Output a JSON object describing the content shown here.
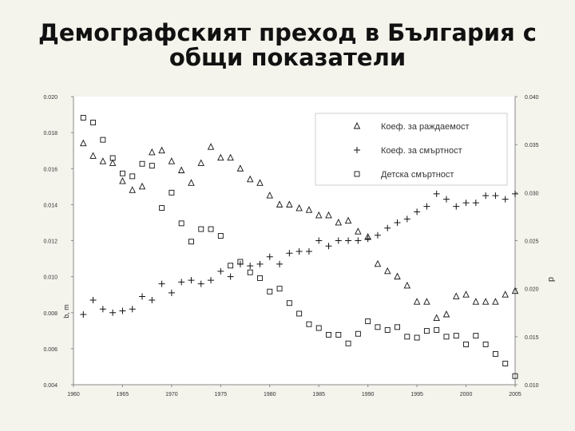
{
  "slide": {
    "title_line1": "Демографският преход в България с",
    "title_line2": "общи показатели"
  },
  "chart_data": {
    "type": "scatter",
    "title": "",
    "xlim": [
      1960,
      2005
    ],
    "x_ticks": [
      "1960",
      "1965",
      "1970",
      "1975",
      "1980",
      "1985",
      "1990",
      "1995",
      "2000",
      "2005"
    ],
    "ylim_left": [
      0.004,
      0.02
    ],
    "y_ticks_left": [
      "0.004",
      "0.006",
      "0.008",
      "0.010",
      "0.012",
      "0.014",
      "0.016",
      "0.018",
      "0.020"
    ],
    "ylim_right": [
      0.01,
      0.04
    ],
    "y_ticks_right": [
      "0.010",
      "0.015",
      "0.020",
      "0.025",
      "0.030",
      "0.035",
      "0.040"
    ],
    "ylabel_left": "b, m",
    "ylabel_right": "d",
    "legend_position": "top-right",
    "grid": false,
    "series": [
      {
        "name": "Коеф. за раждаемост",
        "marker": "triangle",
        "axis": "left",
        "x": [
          1961,
          1962,
          1963,
          1964,
          1965,
          1966,
          1967,
          1968,
          1969,
          1970,
          1971,
          1972,
          1973,
          1974,
          1975,
          1976,
          1977,
          1978,
          1979,
          1980,
          1981,
          1982,
          1983,
          1984,
          1985,
          1986,
          1987,
          1988,
          1989,
          1990,
          1991,
          1992,
          1993,
          1994,
          1995,
          1996,
          1997,
          1998,
          1999,
          2000,
          2001,
          2002,
          2003,
          2004,
          2005
        ],
        "y": [
          0.0174,
          0.0167,
          0.0164,
          0.0163,
          0.0153,
          0.0148,
          0.015,
          0.0169,
          0.017,
          0.0164,
          0.0159,
          0.0152,
          0.0163,
          0.0172,
          0.0166,
          0.0166,
          0.016,
          0.0154,
          0.0152,
          0.0145,
          0.014,
          0.014,
          0.0138,
          0.0137,
          0.0134,
          0.0134,
          0.013,
          0.0131,
          0.0125,
          0.0122,
          0.0107,
          0.0103,
          0.01,
          0.0095,
          0.0086,
          0.0086,
          0.0077,
          0.0079,
          0.0089,
          0.009,
          0.0086,
          0.0086,
          0.0086,
          0.009,
          0.0092
        ]
      },
      {
        "name": "Коеф. за смъртност",
        "marker": "plus",
        "axis": "left",
        "x": [
          1961,
          1962,
          1963,
          1964,
          1965,
          1966,
          1967,
          1968,
          1969,
          1970,
          1971,
          1972,
          1973,
          1974,
          1975,
          1976,
          1977,
          1978,
          1979,
          1980,
          1981,
          1982,
          1983,
          1984,
          1985,
          1986,
          1987,
          1988,
          1989,
          1990,
          1991,
          1992,
          1993,
          1994,
          1995,
          1996,
          1997,
          1998,
          1999,
          2000,
          2001,
          2002,
          2003,
          2004,
          2005
        ],
        "y": [
          0.0079,
          0.0087,
          0.0082,
          0.008,
          0.0081,
          0.0082,
          0.0089,
          0.0087,
          0.0096,
          0.0091,
          0.0097,
          0.0098,
          0.0096,
          0.0098,
          0.0103,
          0.01,
          0.0107,
          0.0106,
          0.0107,
          0.0111,
          0.0107,
          0.0113,
          0.0114,
          0.0114,
          0.012,
          0.0117,
          0.012,
          0.012,
          0.012,
          0.0121,
          0.0123,
          0.0127,
          0.013,
          0.0132,
          0.0136,
          0.0139,
          0.0146,
          0.0143,
          0.0139,
          0.0141,
          0.0141,
          0.0145,
          0.0145,
          0.0143,
          0.0146
        ]
      },
      {
        "name": "Детска смъртност",
        "marker": "square",
        "axis": "right",
        "x": [
          1961,
          1962,
          1963,
          1964,
          1965,
          1966,
          1967,
          1968,
          1969,
          1970,
          1971,
          1972,
          1973,
          1974,
          1975,
          1976,
          1977,
          1978,
          1979,
          1980,
          1981,
          1982,
          1983,
          1984,
          1985,
          1986,
          1987,
          1988,
          1989,
          1990,
          1991,
          1992,
          1993,
          1994,
          1995,
          1996,
          1997,
          1998,
          1999,
          2000,
          2001,
          2002,
          2003,
          2004,
          2005
        ],
        "y": [
          0.0378,
          0.0373,
          0.0355,
          0.0336,
          0.032,
          0.0317,
          0.033,
          0.0328,
          0.0284,
          0.03,
          0.0268,
          0.0249,
          0.0262,
          0.0262,
          0.0255,
          0.0224,
          0.0228,
          0.0217,
          0.0211,
          0.0197,
          0.02,
          0.0185,
          0.0174,
          0.0163,
          0.0159,
          0.0152,
          0.0152,
          0.0143,
          0.0153,
          0.0166,
          0.016,
          0.0157,
          0.016,
          0.015,
          0.0149,
          0.0156,
          0.0157,
          0.015,
          0.0151,
          0.0142,
          0.0151,
          0.0142,
          0.0132,
          0.0122,
          0.0109
        ]
      }
    ]
  }
}
